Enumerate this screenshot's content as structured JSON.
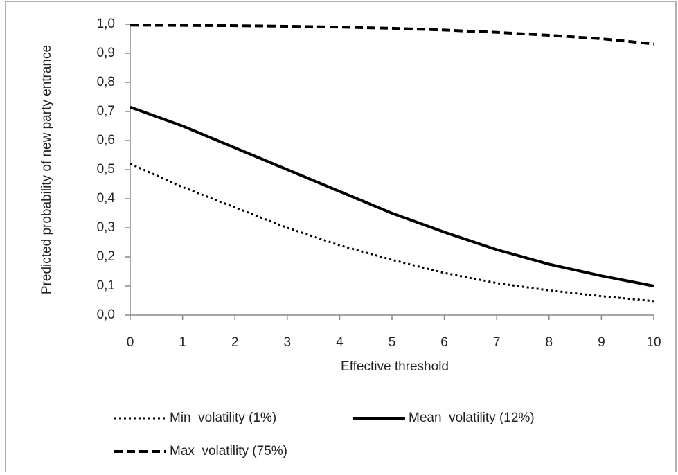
{
  "chart_data": {
    "type": "line",
    "x_label": "Effective threshold",
    "y_label": "Predicted probability of new party entrance",
    "x": [
      0,
      1,
      2,
      3,
      4,
      5,
      6,
      7,
      8,
      9,
      10
    ],
    "series": [
      {
        "name": "Min  volatility (1%)",
        "color": "#000000",
        "style": "dotted",
        "values": [
          0.52,
          0.44,
          0.37,
          0.3,
          0.24,
          0.19,
          0.145,
          0.11,
          0.085,
          0.065,
          0.048
        ]
      },
      {
        "name": "Mean  volatility (12%)",
        "color": "#000000",
        "style": "solid",
        "values": [
          0.715,
          0.65,
          0.575,
          0.5,
          0.425,
          0.35,
          0.285,
          0.225,
          0.175,
          0.135,
          0.1
        ]
      },
      {
        "name": "Max  volatility (75%)",
        "color": "#000000",
        "style": "dashed",
        "values": [
          0.997,
          0.996,
          0.995,
          0.993,
          0.99,
          0.986,
          0.98,
          0.972,
          0.962,
          0.95,
          0.932
        ]
      }
    ],
    "xlim": [
      0,
      10
    ],
    "xticks": [
      0,
      1,
      2,
      3,
      4,
      5,
      6,
      7,
      8,
      9,
      10
    ],
    "ylim": [
      0,
      1
    ],
    "yticks": [
      {
        "value": 0,
        "label": "0,0"
      },
      {
        "value": 0.1,
        "label": "0,1"
      },
      {
        "value": 0.2,
        "label": "0,2"
      },
      {
        "value": 0.3,
        "label": "0,3"
      },
      {
        "value": 0.4,
        "label": "0,4"
      },
      {
        "value": 0.5,
        "label": "0,5"
      },
      {
        "value": 0.6,
        "label": "0,6"
      },
      {
        "value": 0.7,
        "label": "0,7"
      },
      {
        "value": 0.8,
        "label": "0,8"
      },
      {
        "value": 0.9,
        "label": "0,9"
      },
      {
        "value": 1,
        "label": "1,0"
      }
    ],
    "grid": false,
    "legend": "bottom"
  }
}
